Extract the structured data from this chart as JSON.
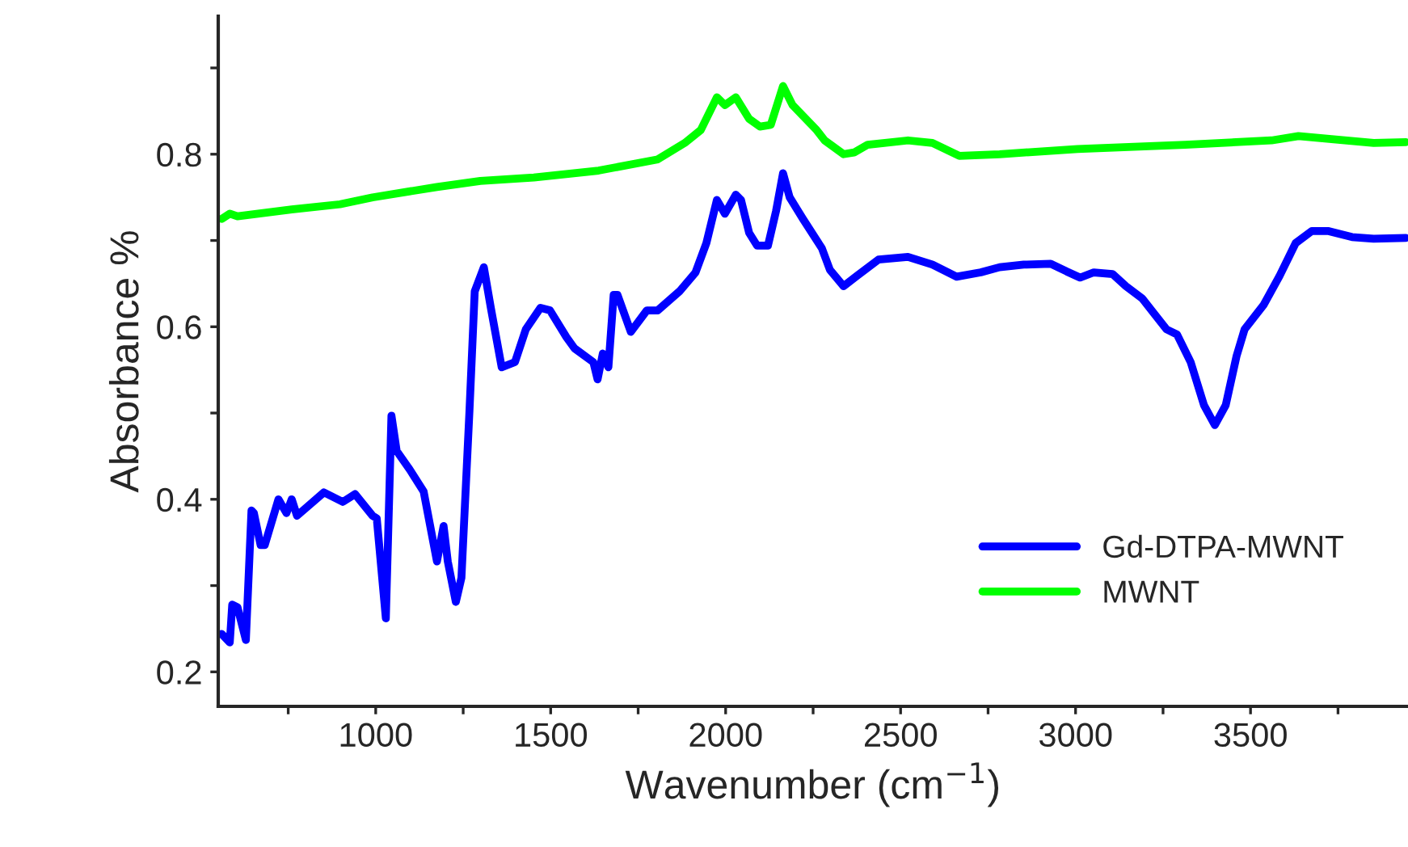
{
  "chart_data": {
    "type": "line",
    "xlabel": "Wavenumber (cm$^{−1}$)",
    "ylabel": "Absorbance %",
    "xlim": [
      550,
      3950
    ],
    "ylim": [
      0.16,
      0.96
    ],
    "xticks": [
      {
        "value": 750,
        "label": null
      },
      1000,
      {
        "value": 1250,
        "label": null
      },
      1500,
      {
        "value": 1750,
        "label": null
      },
      2000,
      {
        "value": 2250,
        "label": null
      },
      2500,
      {
        "value": 2750,
        "label": null
      },
      3000,
      {
        "value": 3250,
        "label": null
      },
      3500,
      {
        "value": 3750,
        "label": null
      }
    ],
    "yticks": [
      0.2,
      {
        "value": 0.3,
        "label": null
      },
      0.4,
      {
        "value": 0.5,
        "label": null
      },
      0.6,
      {
        "value": 0.7,
        "label": null
      },
      0.8,
      {
        "value": 0.9,
        "label": null
      }
    ],
    "grid": false,
    "legend": "bottom right",
    "marker": "none",
    "line_style": "solid",
    "series": [
      {
        "name": "Gd-DTPA-MWNT",
        "color": "#0000ff",
        "x": [
          560,
          583,
          590,
          605,
          629,
          645,
          652,
          671,
          683,
          722,
          745,
          760,
          775,
          852,
          906,
          941,
          991,
          1003,
          1029,
          1045,
          1060,
          1098,
          1137,
          1175,
          1194,
          1206,
          1229,
          1245,
          1268,
          1283,
          1309,
          1329,
          1360,
          1398,
          1429,
          1471,
          1498,
          1545,
          1568,
          1622,
          1634,
          1649,
          1665,
          1680,
          1691,
          1729,
          1775,
          1806,
          1868,
          1914,
          1945,
          1975,
          1998,
          2029,
          2044,
          2067,
          2090,
          2121,
          2144,
          2164,
          2183,
          2221,
          2275,
          2298,
          2337,
          2375,
          2437,
          2521,
          2591,
          2660,
          2729,
          2783,
          2852,
          2929,
          2975,
          3013,
          3052,
          3106,
          3144,
          3190,
          3229,
          3260,
          3290,
          3329,
          3367,
          3398,
          3429,
          3460,
          3483,
          3537,
          3583,
          3629,
          3675,
          3721,
          3790,
          3852,
          3944
        ],
        "values": [
          0.244,
          0.234,
          0.278,
          0.275,
          0.237,
          0.387,
          0.384,
          0.347,
          0.347,
          0.4,
          0.384,
          0.4,
          0.381,
          0.408,
          0.397,
          0.406,
          0.381,
          0.378,
          0.262,
          0.497,
          0.456,
          0.434,
          0.409,
          0.328,
          0.369,
          0.328,
          0.281,
          0.309,
          0.503,
          0.641,
          0.669,
          0.622,
          0.553,
          0.559,
          0.597,
          0.622,
          0.619,
          0.588,
          0.575,
          0.559,
          0.539,
          0.569,
          0.553,
          0.637,
          0.637,
          0.594,
          0.619,
          0.619,
          0.641,
          0.663,
          0.697,
          0.747,
          0.731,
          0.753,
          0.747,
          0.709,
          0.694,
          0.694,
          0.734,
          0.778,
          0.75,
          0.725,
          0.691,
          0.666,
          0.647,
          0.659,
          0.678,
          0.681,
          0.672,
          0.658,
          0.663,
          0.669,
          0.672,
          0.673,
          0.664,
          0.657,
          0.663,
          0.661,
          0.647,
          0.633,
          0.613,
          0.597,
          0.591,
          0.559,
          0.509,
          0.486,
          0.509,
          0.566,
          0.597,
          0.625,
          0.659,
          0.697,
          0.711,
          0.711,
          0.704,
          0.702,
          0.703
        ]
      },
      {
        "name": "MWNT",
        "color": "#00ff00",
        "x": [
          560,
          583,
          605,
          760,
          898,
          991,
          1175,
          1299,
          1452,
          1637,
          1806,
          1883,
          1929,
          1975,
          1998,
          2029,
          2067,
          2098,
          2129,
          2164,
          2191,
          2260,
          2283,
          2337,
          2367,
          2406,
          2521,
          2591,
          2668,
          2783,
          3006,
          3313,
          3560,
          3637,
          3744,
          3852,
          3944
        ],
        "values": [
          0.725,
          0.731,
          0.728,
          0.736,
          0.742,
          0.75,
          0.762,
          0.769,
          0.773,
          0.781,
          0.794,
          0.813,
          0.828,
          0.866,
          0.857,
          0.866,
          0.841,
          0.832,
          0.834,
          0.879,
          0.857,
          0.828,
          0.816,
          0.8,
          0.802,
          0.811,
          0.816,
          0.813,
          0.798,
          0.8,
          0.806,
          0.811,
          0.816,
          0.821,
          0.817,
          0.813,
          0.814
        ]
      }
    ]
  }
}
